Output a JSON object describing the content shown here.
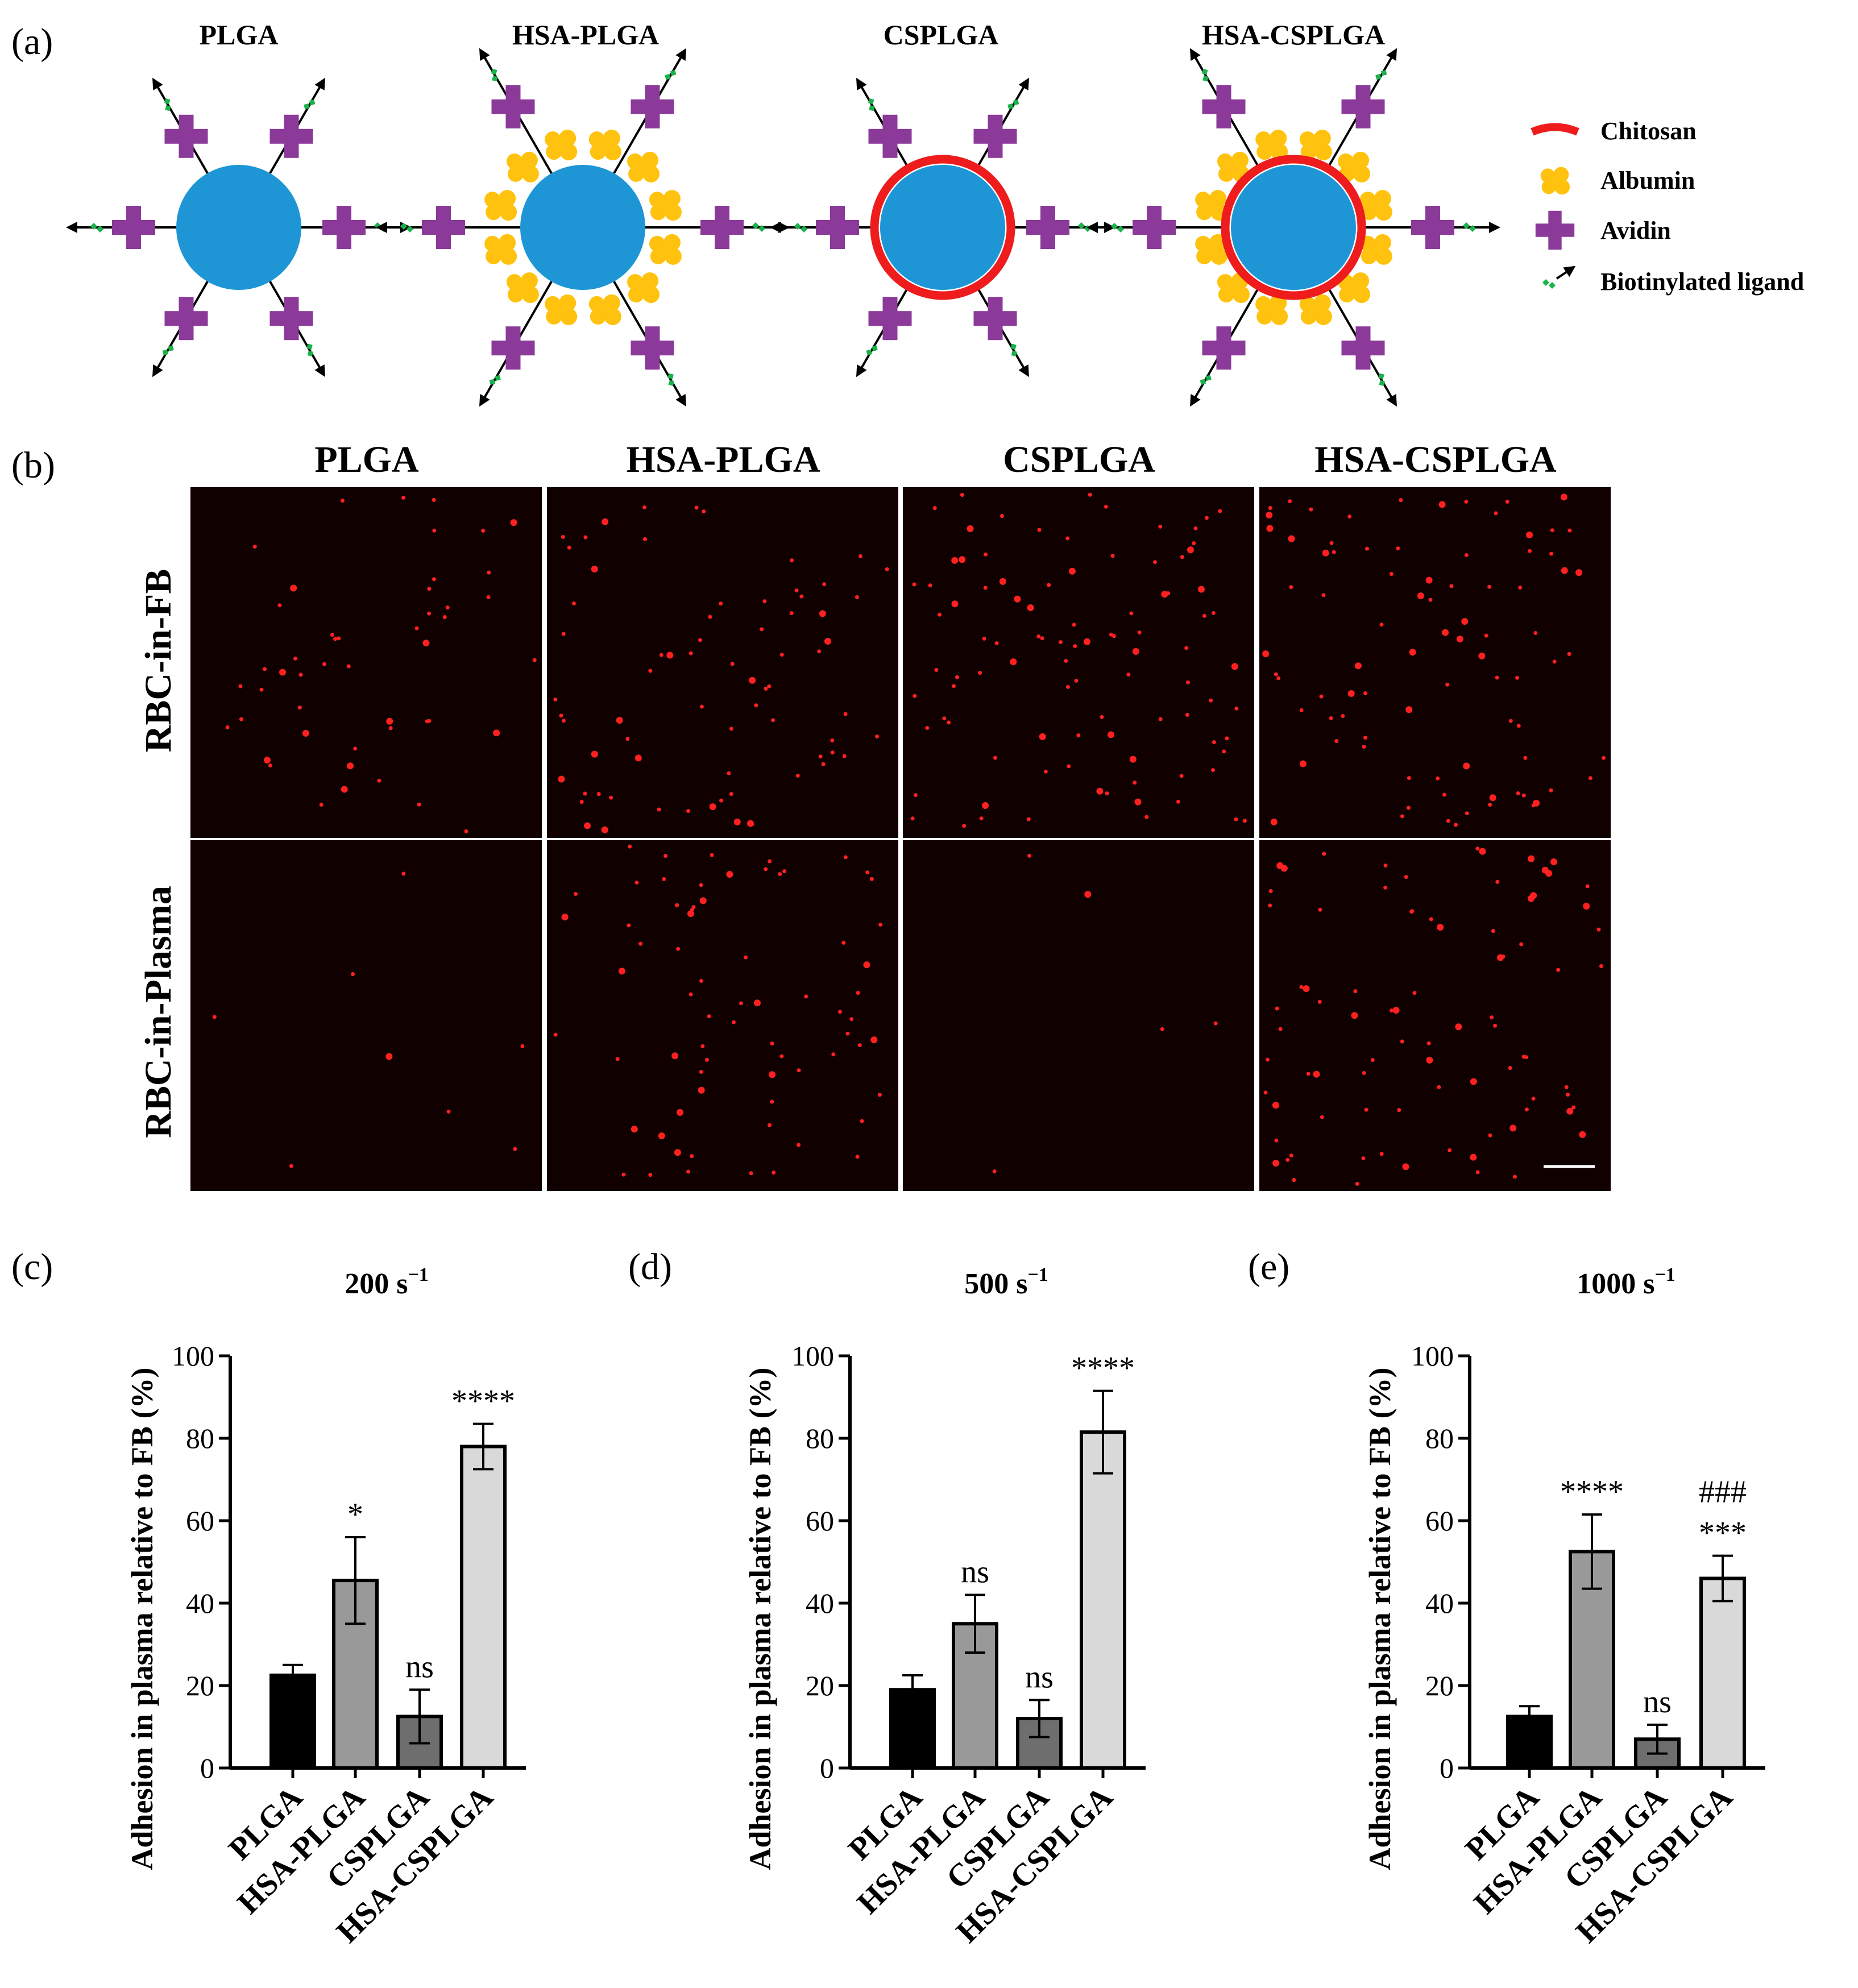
{
  "panel_labels": [
    "(a)",
    "(b)",
    "(c)",
    "(d)",
    "(e)"
  ],
  "schematic": {
    "titles": [
      "PLGA",
      "HSA-PLGA",
      "CSPLGA",
      "HSA-CSPLGA"
    ],
    "legend": [
      {
        "label": "Chitosan",
        "icon": "chitosan-arc-icon"
      },
      {
        "label": "Albumin",
        "icon": "albumin-cluster-icon"
      },
      {
        "label": "Avidin",
        "icon": "avidin-cross-icon"
      },
      {
        "label": "Biotinylated ligand",
        "icon": "biotinylated-ligand-icon"
      }
    ],
    "colors": {
      "core": "#1e96d6",
      "chitosan": "#ee1c1c",
      "albumin": "#ffc20e",
      "avidin": "#8b3a9a",
      "ligand": "#19b24b"
    }
  },
  "microscopy": {
    "column_titles": [
      "PLGA",
      "HSA-PLGA",
      "CSPLGA",
      "HSA-CSPLGA"
    ],
    "row_labels": [
      "RBC-in-FB",
      "RBC-in-Plasma"
    ],
    "colors": {
      "background": "#110000",
      "rbc": "#ff2020"
    }
  },
  "chart_data": [
    {
      "type": "bar",
      "title": "200 s",
      "title_sup": "−1",
      "ylabel": "Adhesion in plasma relative to FB (%)",
      "xlabel": "",
      "ylim": [
        0,
        100
      ],
      "yticks": [
        "0",
        "20",
        "40",
        "60",
        "80",
        "100"
      ],
      "categories": [
        "PLGA",
        "HSA-PLGA",
        "CSPLGA",
        "HSA-CSPLGA"
      ],
      "values": [
        22.5,
        45.5,
        12.5,
        78
      ],
      "errors": [
        2.5,
        10.5,
        6.5,
        5.5
      ],
      "colors": [
        "#000000",
        "#999999",
        "#6e6e6e",
        "#d9d9d9"
      ],
      "significance": [
        [],
        [
          "*"
        ],
        [
          "ns"
        ],
        [
          "****"
        ]
      ]
    },
    {
      "type": "bar",
      "title": "500 s",
      "title_sup": "−1",
      "ylabel": "Adhesion in plasma relative to FB (%)",
      "xlabel": "",
      "ylim": [
        0,
        100
      ],
      "yticks": [
        "0",
        "20",
        "40",
        "60",
        "80",
        "100"
      ],
      "categories": [
        "PLGA",
        "HSA-PLGA",
        "CSPLGA",
        "HSA-CSPLGA"
      ],
      "values": [
        19,
        35,
        12,
        81.5
      ],
      "errors": [
        3.5,
        7,
        4.5,
        10
      ],
      "colors": [
        "#000000",
        "#999999",
        "#6e6e6e",
        "#d9d9d9"
      ],
      "significance": [
        [],
        [
          "ns"
        ],
        [
          "ns"
        ],
        [
          "****"
        ]
      ]
    },
    {
      "type": "bar",
      "title": "1000 s",
      "title_sup": "−1",
      "ylabel": "Adhesion in plasma relative to FB (%)",
      "xlabel": "",
      "ylim": [
        0,
        100
      ],
      "yticks": [
        "0",
        "20",
        "40",
        "60",
        "80",
        "100"
      ],
      "categories": [
        "PLGA",
        "HSA-PLGA",
        "CSPLGA",
        "HSA-CSPLGA"
      ],
      "values": [
        12.5,
        52.5,
        7,
        46
      ],
      "errors": [
        2.5,
        9,
        3.5,
        5.5
      ],
      "colors": [
        "#000000",
        "#999999",
        "#6e6e6e",
        "#d9d9d9"
      ],
      "significance": [
        [],
        [
          "****"
        ],
        [
          "ns"
        ],
        [
          "***",
          "###"
        ]
      ]
    }
  ]
}
